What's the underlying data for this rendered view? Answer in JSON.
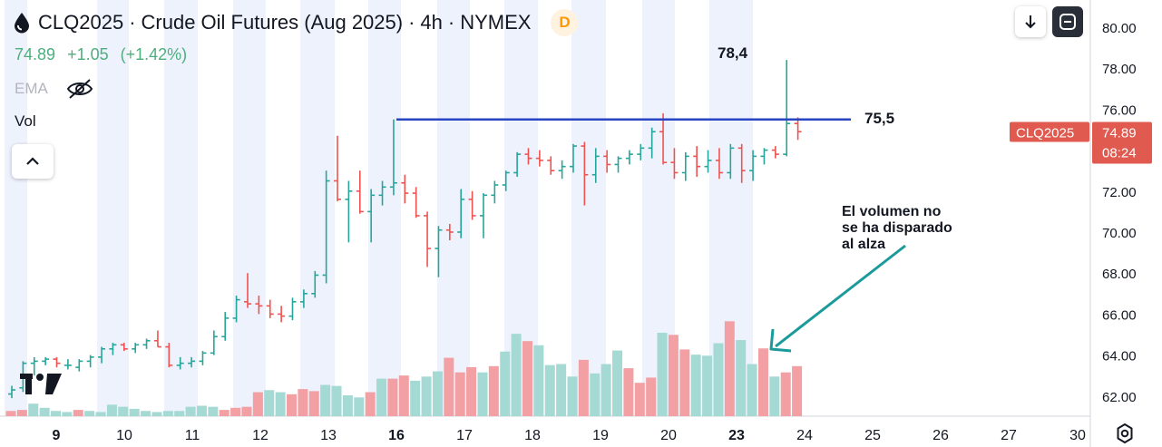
{
  "header": {
    "symbol": "CLQ2025",
    "sep1": "·",
    "name": "Crude Oil Futures (Aug 2025)",
    "sep2": "·",
    "interval": "4h",
    "sep3": "·",
    "exchange": "NYMEX",
    "delay_badge": "D"
  },
  "quote": {
    "last": "74.89",
    "change": "+1.05",
    "change_pct": "(+1.42%)",
    "color": "#4caf7d"
  },
  "indicators": {
    "ema": "EMA",
    "vol": "Vol"
  },
  "price_label": {
    "symbol": "CLQ2025",
    "price": "74.89",
    "countdown": "08:24",
    "color": "#e05a4f"
  },
  "annotations": {
    "high_label": "78,4",
    "level_label": "75,5",
    "note_lines": [
      "El volumen no",
      "se ha disparado",
      "al alza"
    ]
  },
  "colors": {
    "up": "#26a69a",
    "down": "#ef5350",
    "vol_up": "#a5d9d4",
    "vol_down": "#f2a0a3",
    "line": "#2946c2",
    "arrow": "#1a9a9a",
    "band": "#eef2fd"
  },
  "icons": [
    "oil-drop-icon",
    "eye-off-icon",
    "chevron-up-icon",
    "arrow-down-icon",
    "fullscreen-icon",
    "tradingview-logo",
    "gear-icon"
  ],
  "chart_data": {
    "type": "ohlc",
    "y_ticks": [
      "80.00",
      "78.00",
      "76.00",
      "74.00",
      "72.00",
      "70.00",
      "68.00",
      "66.00",
      "64.00",
      "62.00"
    ],
    "x_ticks": [
      "9",
      "10",
      "11",
      "12",
      "13",
      "16",
      "17",
      "18",
      "19",
      "20",
      "23",
      "24",
      "25",
      "26",
      "27",
      "30"
    ],
    "x_ticks_bold": [
      "9",
      "16",
      "23"
    ],
    "ylim": [
      61.0,
      81.0
    ],
    "horizontal_level": 75.5,
    "ohlc": [
      {
        "o": 62.1,
        "h": 62.5,
        "l": 61.9,
        "c": 62.3
      },
      {
        "o": 62.4,
        "h": 63.7,
        "l": 62.2,
        "c": 63.6
      },
      {
        "o": 63.6,
        "h": 63.9,
        "l": 63.0,
        "c": 63.7
      },
      {
        "o": 63.7,
        "h": 63.9,
        "l": 63.5,
        "c": 63.8
      },
      {
        "o": 63.8,
        "h": 63.9,
        "l": 63.4,
        "c": 63.6
      },
      {
        "o": 63.5,
        "h": 63.8,
        "l": 63.3,
        "c": 63.5
      },
      {
        "o": 63.4,
        "h": 63.8,
        "l": 63.2,
        "c": 63.7
      },
      {
        "o": 63.7,
        "h": 64.0,
        "l": 63.4,
        "c": 63.9
      },
      {
        "o": 63.9,
        "h": 64.4,
        "l": 63.6,
        "c": 64.3
      },
      {
        "o": 64.3,
        "h": 64.6,
        "l": 64.0,
        "c": 64.5
      },
      {
        "o": 64.5,
        "h": 64.6,
        "l": 64.2,
        "c": 64.3
      },
      {
        "o": 64.3,
        "h": 64.6,
        "l": 64.1,
        "c": 64.5
      },
      {
        "o": 64.5,
        "h": 64.8,
        "l": 64.3,
        "c": 64.7
      },
      {
        "o": 64.7,
        "h": 65.2,
        "l": 64.4,
        "c": 64.4
      },
      {
        "o": 64.4,
        "h": 64.6,
        "l": 63.4,
        "c": 63.5
      },
      {
        "o": 63.5,
        "h": 63.9,
        "l": 63.3,
        "c": 63.6
      },
      {
        "o": 63.6,
        "h": 63.9,
        "l": 63.4,
        "c": 63.7
      },
      {
        "o": 63.7,
        "h": 64.2,
        "l": 63.5,
        "c": 64.1
      },
      {
        "o": 64.1,
        "h": 65.2,
        "l": 64.0,
        "c": 64.9
      },
      {
        "o": 64.9,
        "h": 66.1,
        "l": 64.7,
        "c": 65.8
      },
      {
        "o": 65.8,
        "h": 66.9,
        "l": 65.6,
        "c": 66.7
      },
      {
        "o": 66.6,
        "h": 68.0,
        "l": 66.3,
        "c": 66.5
      },
      {
        "o": 66.5,
        "h": 66.9,
        "l": 66.0,
        "c": 66.4
      },
      {
        "o": 66.4,
        "h": 66.7,
        "l": 65.8,
        "c": 66.0
      },
      {
        "o": 66.0,
        "h": 66.4,
        "l": 65.6,
        "c": 65.9
      },
      {
        "o": 65.9,
        "h": 66.8,
        "l": 65.7,
        "c": 66.6
      },
      {
        "o": 66.6,
        "h": 67.2,
        "l": 66.3,
        "c": 67.0
      },
      {
        "o": 67.0,
        "h": 68.1,
        "l": 66.8,
        "c": 67.9
      },
      {
        "o": 67.9,
        "h": 73.0,
        "l": 67.5,
        "c": 72.5
      },
      {
        "o": 72.5,
        "h": 74.7,
        "l": 71.5,
        "c": 71.6
      },
      {
        "o": 71.6,
        "h": 72.5,
        "l": 69.5,
        "c": 72.0
      },
      {
        "o": 72.0,
        "h": 73.0,
        "l": 70.9,
        "c": 71.0
      },
      {
        "o": 71.0,
        "h": 72.1,
        "l": 69.5,
        "c": 71.8
      },
      {
        "o": 71.8,
        "h": 72.5,
        "l": 71.3,
        "c": 72.2
      },
      {
        "o": 72.2,
        "h": 75.5,
        "l": 71.8,
        "c": 72.4
      },
      {
        "o": 72.4,
        "h": 72.8,
        "l": 71.4,
        "c": 71.9
      },
      {
        "o": 71.9,
        "h": 72.2,
        "l": 70.7,
        "c": 70.8
      },
      {
        "o": 70.8,
        "h": 71.0,
        "l": 68.3,
        "c": 69.2
      },
      {
        "o": 69.2,
        "h": 70.3,
        "l": 67.8,
        "c": 70.1
      },
      {
        "o": 70.1,
        "h": 70.4,
        "l": 69.6,
        "c": 70.0
      },
      {
        "o": 70.0,
        "h": 72.1,
        "l": 69.7,
        "c": 71.6
      },
      {
        "o": 71.6,
        "h": 72.0,
        "l": 70.6,
        "c": 70.8
      },
      {
        "o": 70.8,
        "h": 71.9,
        "l": 69.7,
        "c": 71.8
      },
      {
        "o": 71.8,
        "h": 72.5,
        "l": 71.4,
        "c": 72.3
      },
      {
        "o": 72.3,
        "h": 73.0,
        "l": 72.0,
        "c": 72.9
      },
      {
        "o": 72.9,
        "h": 73.9,
        "l": 72.7,
        "c": 73.8
      },
      {
        "o": 73.8,
        "h": 74.1,
        "l": 73.3,
        "c": 73.6
      },
      {
        "o": 73.6,
        "h": 74.0,
        "l": 73.2,
        "c": 73.5
      },
      {
        "o": 73.5,
        "h": 73.7,
        "l": 72.8,
        "c": 73.0
      },
      {
        "o": 73.0,
        "h": 73.5,
        "l": 72.6,
        "c": 73.2
      },
      {
        "o": 73.2,
        "h": 74.3,
        "l": 72.9,
        "c": 74.2
      },
      {
        "o": 74.2,
        "h": 74.4,
        "l": 71.3,
        "c": 72.8
      },
      {
        "o": 72.8,
        "h": 74.1,
        "l": 72.4,
        "c": 73.7
      },
      {
        "o": 73.7,
        "h": 74.0,
        "l": 72.9,
        "c": 73.3
      },
      {
        "o": 73.3,
        "h": 73.7,
        "l": 72.9,
        "c": 73.6
      },
      {
        "o": 73.6,
        "h": 74.0,
        "l": 73.3,
        "c": 73.8
      },
      {
        "o": 73.8,
        "h": 74.3,
        "l": 73.5,
        "c": 74.1
      },
      {
        "o": 74.1,
        "h": 75.1,
        "l": 73.6,
        "c": 74.9
      },
      {
        "o": 74.9,
        "h": 75.8,
        "l": 73.3,
        "c": 73.4
      },
      {
        "o": 73.4,
        "h": 74.1,
        "l": 72.6,
        "c": 72.9
      },
      {
        "o": 72.9,
        "h": 73.9,
        "l": 72.5,
        "c": 73.7
      },
      {
        "o": 73.7,
        "h": 74.2,
        "l": 72.7,
        "c": 73.2
      },
      {
        "o": 73.2,
        "h": 74.0,
        "l": 72.9,
        "c": 73.5
      },
      {
        "o": 73.5,
        "h": 74.1,
        "l": 72.6,
        "c": 72.9
      },
      {
        "o": 72.9,
        "h": 74.3,
        "l": 72.6,
        "c": 74.1
      },
      {
        "o": 74.1,
        "h": 74.3,
        "l": 72.4,
        "c": 73.0
      },
      {
        "o": 73.0,
        "h": 74.0,
        "l": 72.5,
        "c": 73.7
      },
      {
        "o": 73.7,
        "h": 74.1,
        "l": 73.3,
        "c": 74.0
      },
      {
        "o": 74.0,
        "h": 74.2,
        "l": 73.6,
        "c": 73.8
      },
      {
        "o": 73.8,
        "h": 78.4,
        "l": 73.7,
        "c": 75.3
      },
      {
        "o": 75.3,
        "h": 75.6,
        "l": 74.5,
        "c": 74.9
      }
    ],
    "volume_relative": [
      0.05,
      0.06,
      0.12,
      0.08,
      0.05,
      0.04,
      0.06,
      0.05,
      0.04,
      0.11,
      0.09,
      0.07,
      0.05,
      0.04,
      0.05,
      0.05,
      0.09,
      0.1,
      0.09,
      0.06,
      0.08,
      0.09,
      0.23,
      0.25,
      0.23,
      0.21,
      0.26,
      0.24,
      0.3,
      0.29,
      0.2,
      0.18,
      0.23,
      0.36,
      0.36,
      0.39,
      0.34,
      0.38,
      0.43,
      0.56,
      0.42,
      0.47,
      0.42,
      0.48,
      0.62,
      0.79,
      0.72,
      0.68,
      0.49,
      0.5,
      0.38,
      0.54,
      0.41,
      0.5,
      0.63,
      0.46,
      0.32,
      0.37,
      0.8,
      0.78,
      0.64,
      0.59,
      0.58,
      0.7,
      0.91,
      0.73,
      0.5,
      0.65,
      0.38,
      0.42,
      0.48
    ],
    "volume_direction": [
      "d",
      "d",
      "u",
      "u",
      "u",
      "u",
      "d",
      "u",
      "u",
      "u",
      "u",
      "u",
      "u",
      "u",
      "u",
      "u",
      "u",
      "u",
      "u",
      "d",
      "d",
      "d",
      "d",
      "u",
      "u",
      "d",
      "d",
      "d",
      "u",
      "u",
      "u",
      "u",
      "d",
      "u",
      "d",
      "d",
      "u",
      "u",
      "u",
      "d",
      "d",
      "d",
      "u",
      "d",
      "u",
      "u",
      "d",
      "u",
      "u",
      "u",
      "u",
      "d",
      "u",
      "u",
      "u",
      "d",
      "d",
      "d",
      "u",
      "d",
      "d",
      "u",
      "u",
      "u",
      "d",
      "u",
      "u",
      "d",
      "u",
      "d",
      "d"
    ]
  }
}
